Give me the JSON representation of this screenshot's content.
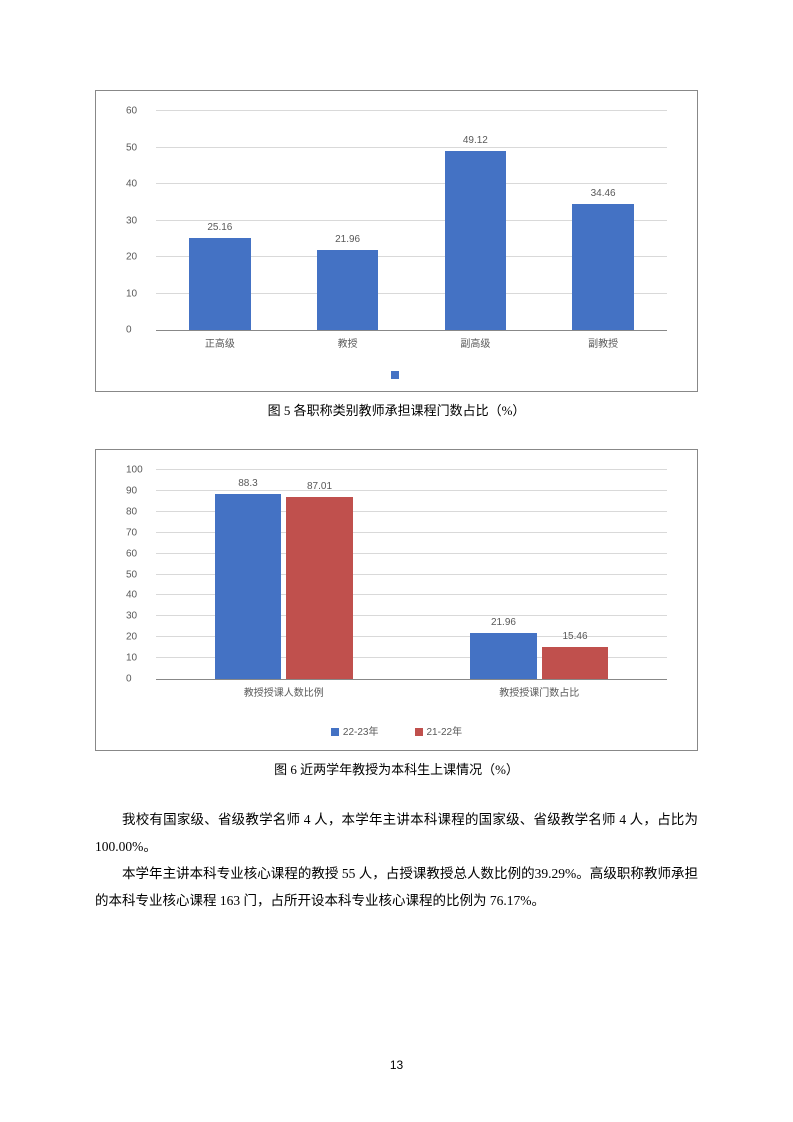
{
  "chart5": {
    "type": "bar",
    "categories": [
      "正高级",
      "教授",
      "副高级",
      "副教授"
    ],
    "values": [
      25.16,
      21.96,
      49.12,
      34.46
    ],
    "value_labels": [
      "25.16",
      "21.96",
      "49.12",
      "34.46"
    ],
    "bar_color": "#4472c4",
    "ylim": [
      0,
      60
    ],
    "ytick_step": 10,
    "yticks": [
      "0",
      "10",
      "20",
      "30",
      "40",
      "50",
      "60"
    ],
    "bar_width_pct": 12,
    "grid_color": "#d9d9d9",
    "legend_label": ""
  },
  "caption5": "图 5  各职称类别教师承担课程门数占比（%）",
  "chart6": {
    "type": "grouped-bar",
    "categories": [
      "教授授课人数比例",
      "教授授课门数占比"
    ],
    "series": [
      {
        "name": "22-23年",
        "color": "#4472c4",
        "values": [
          88.3,
          21.96
        ],
        "labels": [
          "88.3",
          "21.96"
        ]
      },
      {
        "name": "21-22年",
        "color": "#c0504d",
        "values": [
          87.01,
          15.46
        ],
        "labels": [
          "87.01",
          "15.46"
        ]
      }
    ],
    "ylim": [
      0,
      100
    ],
    "ytick_step": 10,
    "yticks": [
      "0",
      "10",
      "20",
      "30",
      "40",
      "50",
      "60",
      "70",
      "80",
      "90",
      "100"
    ],
    "bar_width_pct": 13,
    "grid_color": "#d9d9d9"
  },
  "caption6": "图 6   近两学年教授为本科生上课情况（%）",
  "para1": "我校有国家级、省级教学名师 4 人，本学年主讲本科课程的国家级、省级教学名师 4 人，占比为 100.00%。",
  "para2": "本学年主讲本科专业核心课程的教授 55 人，占授课教授总人数比例的39.29%。高级职称教师承担的本科专业核心课程 163 门，占所开设本科专业核心课程的比例为 76.17%。",
  "page_number": "13"
}
